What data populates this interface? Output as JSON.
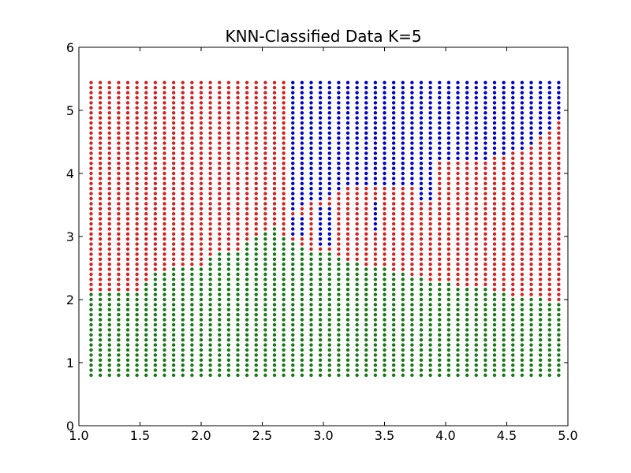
{
  "chart_data": {
    "type": "scatter",
    "title": "KNN-Classified Data K=5",
    "xlabel": "",
    "ylabel": "",
    "xlim": [
      1.0,
      5.0
    ],
    "ylim": [
      0,
      6
    ],
    "x_ticks": [
      "1.0",
      "1.5",
      "2.0",
      "2.5",
      "3.0",
      "3.5",
      "4.0",
      "4.5",
      "5.0"
    ],
    "y_ticks": [
      "0",
      "1",
      "2",
      "3",
      "4",
      "5",
      "6"
    ],
    "grid": false,
    "legend": "none",
    "grid_spec": {
      "x_start": 1.1,
      "x_step": 0.075,
      "x_count": 52,
      "y_start": 0.8,
      "y_step": 0.08,
      "y_count": 59
    },
    "series": [
      {
        "color": "#0000cc",
        "description": "blue class region"
      },
      {
        "color": "#d62020",
        "description": "red class region"
      },
      {
        "color": "#157a15",
        "description": "green class region"
      }
    ],
    "class_regions": {
      "green_boundary": [
        [
          1.1,
          2.15
        ],
        [
          1.5,
          2.15
        ],
        [
          1.55,
          2.3
        ],
        [
          1.65,
          2.45
        ],
        [
          2.0,
          2.55
        ],
        [
          2.1,
          2.7
        ],
        [
          2.3,
          2.8
        ],
        [
          2.5,
          3.05
        ],
        [
          2.62,
          3.15
        ],
        [
          2.7,
          2.95
        ],
        [
          2.8,
          2.85
        ],
        [
          3.0,
          2.75
        ],
        [
          3.1,
          2.7
        ],
        [
          3.3,
          2.55
        ],
        [
          3.6,
          2.45
        ],
        [
          3.8,
          2.35
        ],
        [
          4.0,
          2.25
        ],
        [
          4.2,
          2.2
        ],
        [
          4.4,
          2.15
        ],
        [
          4.6,
          2.05
        ],
        [
          4.8,
          2.0
        ],
        [
          4.95,
          1.95
        ]
      ],
      "red_boundary": [
        [
          1.1,
          99
        ],
        [
          2.68,
          99
        ],
        [
          2.72,
          3.4
        ],
        [
          2.8,
          3.5
        ],
        [
          2.9,
          3.55
        ],
        [
          3.0,
          3.6
        ],
        [
          3.1,
          3.75
        ],
        [
          3.3,
          3.8
        ],
        [
          3.7,
          3.8
        ],
        [
          3.8,
          3.85
        ],
        [
          3.85,
          4.15
        ],
        [
          4.0,
          4.2
        ],
        [
          4.2,
          4.2
        ],
        [
          4.4,
          4.25
        ],
        [
          4.6,
          4.35
        ],
        [
          4.8,
          4.6
        ],
        [
          4.95,
          4.85
        ]
      ],
      "blue_pockets": [
        {
          "x": [
            2.75,
            2.88
          ],
          "y": [
            3.0,
            3.35
          ]
        },
        {
          "x": [
            2.95,
            3.05
          ],
          "y": [
            2.85,
            3.5
          ]
        },
        {
          "x": [
            3.4,
            3.48
          ],
          "y": [
            3.1,
            3.6
          ]
        },
        {
          "x": [
            3.78,
            3.92
          ],
          "y": [
            3.6,
            4.1
          ]
        }
      ]
    }
  }
}
